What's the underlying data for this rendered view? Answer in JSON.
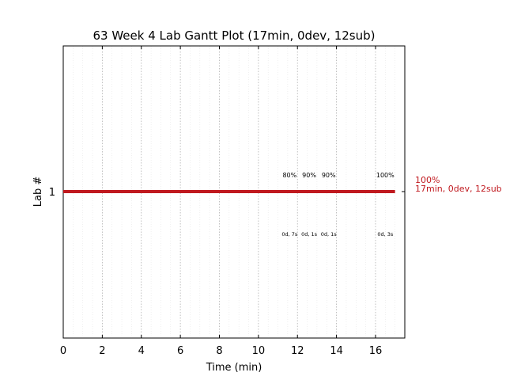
{
  "chart_data": {
    "type": "gantt",
    "title": "63 Week 4 Lab Gantt Plot (17min, 0dev, 12sub)",
    "xlabel": "Time (min)",
    "ylabel": "Lab #",
    "xlim": [
      0,
      17.5
    ],
    "x_ticks": [
      0,
      2,
      4,
      6,
      8,
      10,
      12,
      14,
      16
    ],
    "x_tick_labels": [
      "0",
      "2",
      "4",
      "6",
      "8",
      "10",
      "12",
      "14",
      "16"
    ],
    "y_categories": [
      "1"
    ],
    "grid": "vertical dotted",
    "bar": {
      "lab": "1",
      "start": 0,
      "end": 17,
      "color": "#c0191f"
    },
    "annotations_above": [
      {
        "x": 11.6,
        "text": "80%"
      },
      {
        "x": 12.6,
        "text": "90%"
      },
      {
        "x": 13.6,
        "text": "90%"
      },
      {
        "x": 16.5,
        "text": "100%"
      }
    ],
    "annotations_below": [
      {
        "x": 11.6,
        "text": "0d, 7s"
      },
      {
        "x": 12.6,
        "text": "0d, 1s"
      },
      {
        "x": 13.6,
        "text": "0d, 1s"
      },
      {
        "x": 16.5,
        "text": "0d, 3s"
      }
    ],
    "side_label": {
      "line1": "100%",
      "line2": "17min, 0dev, 12sub",
      "color": "#c0191f"
    }
  }
}
